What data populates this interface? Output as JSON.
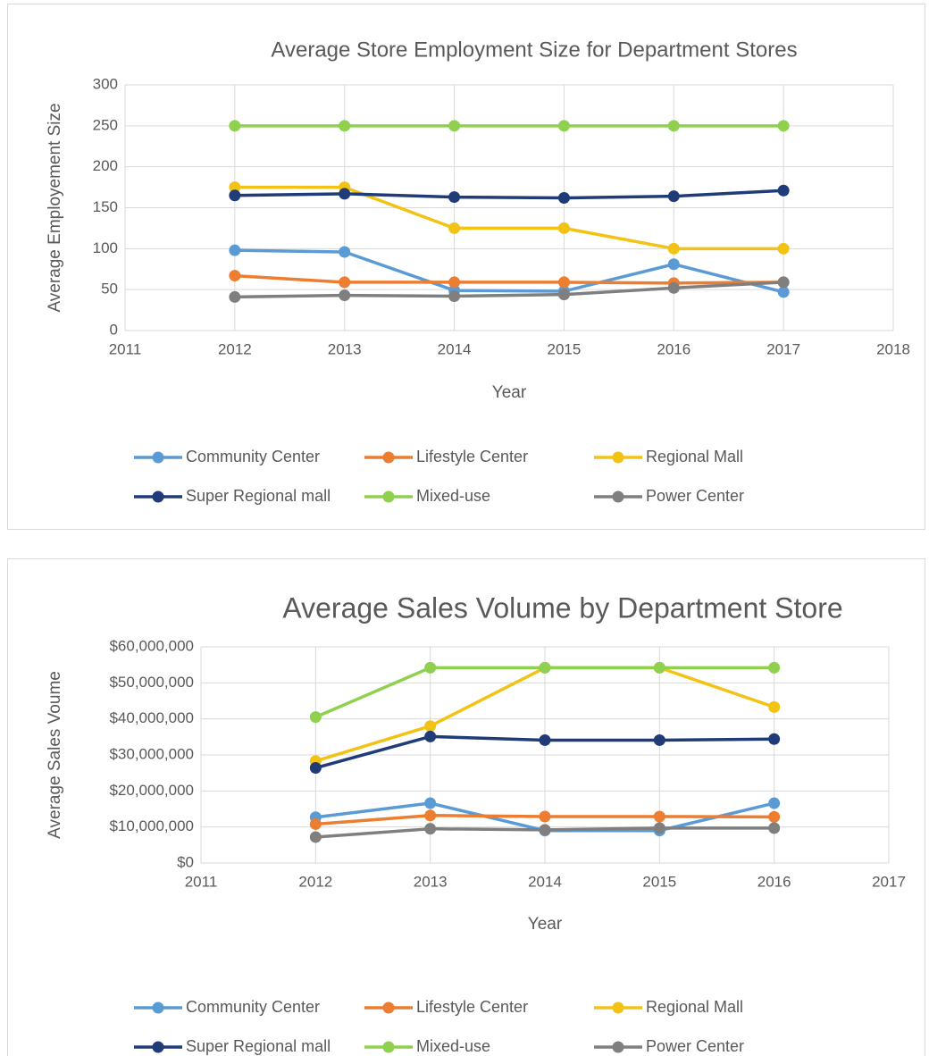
{
  "chart_data": [
    {
      "type": "line",
      "title": "Average Store Employment Size for Department Stores",
      "x_label": "Year",
      "y_label": "Average Employement Size",
      "x": [
        2012,
        2013,
        2014,
        2015,
        2016,
        2017
      ],
      "xlim": [
        2011,
        2018
      ],
      "xticks": [
        2011,
        2012,
        2013,
        2014,
        2015,
        2016,
        2017,
        2018
      ],
      "ylim": [
        0,
        300
      ],
      "yticks": [
        0,
        50,
        100,
        150,
        200,
        250,
        300
      ],
      "grid": true,
      "legend": "bottom",
      "series": [
        {
          "name": "Community Center",
          "color": "#5b9bd5",
          "values": [
            98,
            96,
            49,
            48,
            81,
            47
          ]
        },
        {
          "name": "Lifestyle Center",
          "color": "#ed7d31",
          "values": [
            67,
            59,
            59,
            59,
            58,
            59
          ]
        },
        {
          "name": "Regional Mall",
          "color": "#f2c314",
          "values": [
            175,
            175,
            125,
            125,
            100,
            100
          ]
        },
        {
          "name": "Super Regional mall",
          "color": "#203c78",
          "values": [
            165,
            167,
            163,
            162,
            164,
            171
          ]
        },
        {
          "name": "Mixed-use",
          "color": "#8fd14f",
          "values": [
            250,
            250,
            250,
            250,
            250,
            250
          ]
        },
        {
          "name": "Power Center",
          "color": "#7f7f7f",
          "values": [
            41,
            43,
            42,
            44,
            52,
            59
          ]
        }
      ]
    },
    {
      "type": "line",
      "title": "Average Sales Volume by Department Store",
      "x_label": "Year",
      "y_label": "Average Sales Voume",
      "x": [
        2012,
        2013,
        2014,
        2015,
        2016
      ],
      "xlim": [
        2011,
        2017
      ],
      "xticks": [
        2011,
        2012,
        2013,
        2014,
        2015,
        2016,
        2017
      ],
      "ylim": [
        0,
        60000000
      ],
      "yticks": [
        {
          "value": 0,
          "label": "$0"
        },
        {
          "value": 10000000,
          "label": "$10,000,000"
        },
        {
          "value": 20000000,
          "label": "$20,000,000"
        },
        {
          "value": 30000000,
          "label": "$30,000,000"
        },
        {
          "value": 40000000,
          "label": "$40,000,000"
        },
        {
          "value": 50000000,
          "label": "$50,000,000"
        },
        {
          "value": 60000000,
          "label": "$60,000,000"
        }
      ],
      "grid": true,
      "legend": "bottom",
      "series": [
        {
          "name": "Community Center",
          "color": "#5b9bd5",
          "values": [
            12700000,
            16600000,
            9000000,
            9000000,
            16600000
          ]
        },
        {
          "name": "Lifestyle Center",
          "color": "#ed7d31",
          "values": [
            10800000,
            13200000,
            12900000,
            12900000,
            12800000
          ]
        },
        {
          "name": "Regional Mall",
          "color": "#f2c314",
          "values": [
            28300000,
            38000000,
            54200000,
            54200000,
            43300000
          ]
        },
        {
          "name": "Super Regional mall",
          "color": "#203c78",
          "values": [
            26400000,
            35100000,
            34100000,
            34100000,
            34400000
          ]
        },
        {
          "name": "Mixed-use",
          "color": "#8fd14f",
          "values": [
            40500000,
            54200000,
            54200000,
            54200000,
            54200000
          ]
        },
        {
          "name": "Power Center",
          "color": "#7f7f7f",
          "values": [
            7200000,
            9500000,
            9200000,
            9700000,
            9700000
          ]
        }
      ]
    }
  ]
}
